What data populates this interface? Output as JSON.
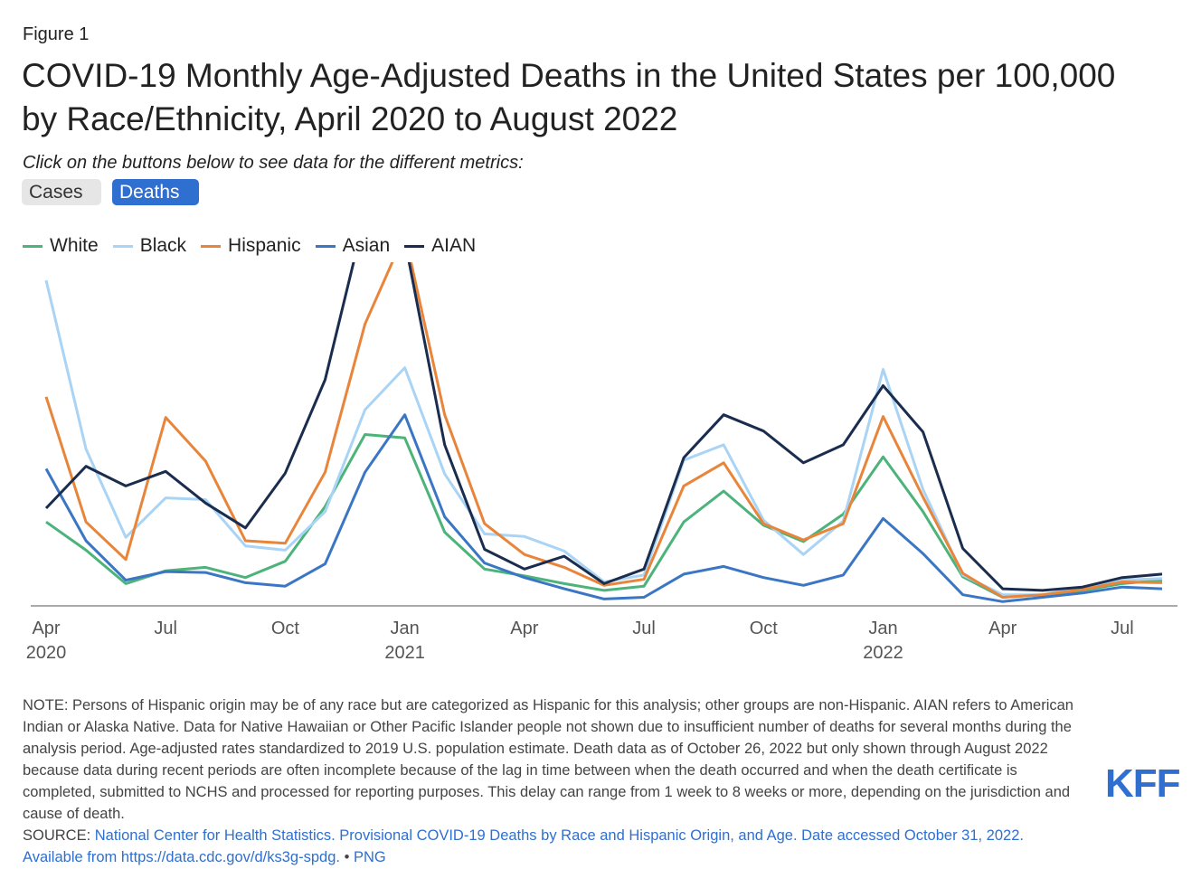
{
  "figure_label": "Figure 1",
  "title": "COVID-19 Monthly Age-Adjusted Deaths in the United States per 100,000 by Race/Ethnicity, April 2020 to August 2022",
  "subtitle": "Click on the buttons below to see data for the different metrics:",
  "buttons": {
    "cases": "Cases",
    "deaths": "Deaths"
  },
  "chart_data": {
    "type": "line",
    "x": [
      "Apr 2020",
      "May 2020",
      "Jun 2020",
      "Jul 2020",
      "Aug 2020",
      "Sep 2020",
      "Oct 2020",
      "Nov 2020",
      "Dec 2020",
      "Jan 2021",
      "Feb 2021",
      "Mar 2021",
      "Apr 2021",
      "May 2021",
      "Jun 2021",
      "Jul 2021",
      "Aug 2021",
      "Sep 2021",
      "Oct 2021",
      "Nov 2021",
      "Dec 2021",
      "Jan 2022",
      "Feb 2022",
      "Mar 2022",
      "Apr 2022",
      "May 2022",
      "Jun 2022",
      "Jul 2022",
      "Aug 2022"
    ],
    "x_ticks": [
      {
        "label": "Apr",
        "sub": "2020",
        "index": 0
      },
      {
        "label": "Jul",
        "sub": "",
        "index": 3
      },
      {
        "label": "Oct",
        "sub": "",
        "index": 6
      },
      {
        "label": "Jan",
        "sub": "2021",
        "index": 9
      },
      {
        "label": "Apr",
        "sub": "",
        "index": 12
      },
      {
        "label": "Jul",
        "sub": "",
        "index": 15
      },
      {
        "label": "Oct",
        "sub": "",
        "index": 18
      },
      {
        "label": "Jan",
        "sub": "2022",
        "index": 21
      },
      {
        "label": "Apr",
        "sub": "",
        "index": 24
      },
      {
        "label": "Jul",
        "sub": "",
        "index": 27
      }
    ],
    "ylim": [
      0,
      38
    ],
    "grid": false,
    "legend_position": "top-left",
    "series": [
      {
        "name": "White",
        "color": "#4cb37a",
        "values": [
          9.8,
          6.5,
          2.6,
          4.1,
          4.5,
          3.3,
          5.2,
          11.6,
          20.0,
          19.6,
          8.6,
          4.3,
          3.5,
          2.6,
          1.8,
          2.3,
          9.8,
          13.4,
          9.4,
          7.5,
          10.7,
          17.4,
          11.0,
          3.4,
          1.0,
          1.3,
          1.8,
          2.6,
          3.0
        ]
      },
      {
        "name": "Black",
        "color": "#a9d4f5",
        "values": [
          38.0,
          18.3,
          8.0,
          12.6,
          12.4,
          7.0,
          6.5,
          11.0,
          22.9,
          27.8,
          15.4,
          8.4,
          8.1,
          6.4,
          2.8,
          3.6,
          17.0,
          18.8,
          10.0,
          6.0,
          9.9,
          27.6,
          13.6,
          3.6,
          1.3,
          1.3,
          2.2,
          3.0,
          3.2
        ]
      },
      {
        "name": "Hispanic",
        "color": "#e8853a",
        "values": [
          24.4,
          9.8,
          5.4,
          22.0,
          16.9,
          7.6,
          7.3,
          15.6,
          32.9,
          43.4,
          22.3,
          9.6,
          6.0,
          4.5,
          2.4,
          3.1,
          14.0,
          16.7,
          9.6,
          7.7,
          9.6,
          22.1,
          12.7,
          3.8,
          1.0,
          1.3,
          1.9,
          2.8,
          2.7
        ]
      },
      {
        "name": "Asian",
        "color": "#3a76c4",
        "values": [
          16.0,
          7.6,
          3.0,
          4.0,
          3.9,
          2.7,
          2.3,
          4.9,
          15.6,
          22.3,
          10.4,
          5.0,
          3.3,
          2.0,
          0.8,
          1.0,
          3.7,
          4.6,
          3.3,
          2.4,
          3.6,
          10.2,
          6.1,
          1.3,
          0.5,
          1.0,
          1.5,
          2.2,
          2.0
        ]
      },
      {
        "name": "AIAN",
        "color": "#1b2d4e",
        "values": [
          11.4,
          16.3,
          14.0,
          15.7,
          12.0,
          9.1,
          15.5,
          26.4,
          45.6,
          42.7,
          18.8,
          6.6,
          4.3,
          5.8,
          2.6,
          4.3,
          17.3,
          22.3,
          20.4,
          16.7,
          18.8,
          25.7,
          20.3,
          6.7,
          2.0,
          1.8,
          2.2,
          3.3,
          3.7
        ]
      }
    ]
  },
  "note": "NOTE: Persons of Hispanic origin may be of any race but are categorized as Hispanic for this analysis; other groups are non-Hispanic. AIAN refers to American Indian or Alaska Native. Data for Native Hawaiian or Other Pacific Islander people not shown due to insufficient number of deaths for several months during the analysis period. Age-adjusted rates standardized to 2019 U.S. population estimate. Death data as of October 26, 2022 but only shown through August 2022 because data during recent periods are often incomplete because of the lag in time between when the death occurred and when the death certificate is completed, submitted to NCHS and processed for reporting purposes. This delay can range from 1 week to 8 weeks or more, depending on the jurisdiction and cause of death.",
  "source": {
    "prefix": "SOURCE: ",
    "link_text": "National Center for Health Statistics. Provisional COVID-19 Deaths by Race and Hispanic Origin, and Age. Date accessed October 31, 2022. Available from https://data.cdc.gov/d/ks3g-spdg.",
    "separator": " • ",
    "png_link": "PNG"
  },
  "logo": "KFF"
}
